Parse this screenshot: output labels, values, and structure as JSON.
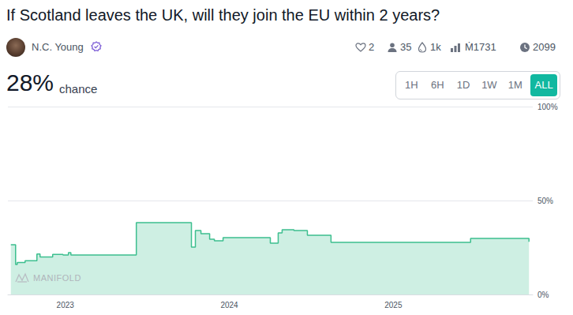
{
  "page": {
    "title": "If Scotland leaves the UK, will they join the EU within 2 years?",
    "author": "N.C. Young",
    "stats": [
      "2",
      "35",
      "1k",
      "Ṁ1731",
      "2099"
    ],
    "probability": "28%",
    "probability_text": "chance",
    "time_buttons": [
      "1H",
      "6H",
      "1D",
      "1W",
      "1M",
      "ALL"
    ],
    "selected_button": "ALL",
    "watermark": "MANIFOLD"
  },
  "chart_data": {
    "type": "area",
    "line_style": "step",
    "marker": "none",
    "color": "#3dbf8f",
    "grid": true,
    "x": [
      2022.668,
      2022.697,
      2022.707,
      2022.755,
      2022.827,
      2022.846,
      2022.923,
      2022.986,
      2023.019,
      2023.034,
      2023.433,
      2023.769,
      2023.793,
      2023.827,
      2023.88,
      2023.909,
      2023.962,
      2024.25,
      2024.298,
      2024.322,
      2024.394,
      2024.476,
      2024.62,
      2025.471,
      2025.827
    ],
    "values": [
      26.5,
      16,
      17,
      18,
      21.5,
      20,
      21.3,
      21,
      22.3,
      21,
      38.2,
      25.2,
      34,
      32.4,
      29.4,
      28.6,
      30.3,
      27.3,
      32.8,
      34.5,
      34,
      31.5,
      27.7,
      29.8,
      28
    ],
    "xlim": [
      2022.65,
      2025.85
    ],
    "xticks": [
      2023,
      2024,
      2025
    ],
    "ylim": [
      0,
      100
    ],
    "yticks": [
      {
        "value": 0,
        "label": "0%"
      },
      {
        "value": 50,
        "label": "50%"
      },
      {
        "value": 100,
        "label": "100%"
      }
    ]
  }
}
